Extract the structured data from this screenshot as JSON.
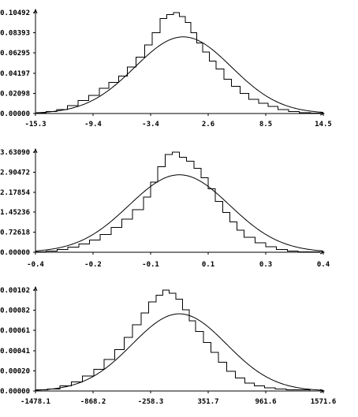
{
  "chart_data": [
    {
      "type": "line",
      "title": "",
      "xlabel": "",
      "ylabel": "",
      "xlim": [
        -15.3,
        14.5
      ],
      "ylim": [
        0,
        0.10492
      ],
      "x_ticks": [
        "-15.3",
        "-9.4",
        "-3.4",
        "2.6",
        "8.5",
        "14.5"
      ],
      "y_ticks": [
        "0.00000",
        "0.02098",
        "0.04197",
        "0.06295",
        "0.08393",
        "0.10492"
      ],
      "series": [
        {
          "kind": "step",
          "x": [
            -15.3,
            -14.2,
            -13.1,
            -12.0,
            -10.9,
            -9.8,
            -8.7,
            -7.7,
            -6.7,
            -5.8,
            -4.9,
            -4.0,
            -3.2,
            -2.4,
            -1.7,
            -1.0,
            -0.4,
            0.2,
            0.8,
            1.4,
            2.0,
            2.7,
            3.4,
            4.2,
            5.0,
            5.9,
            6.8,
            7.8,
            8.8,
            9.8,
            10.9,
            12.0,
            13.2,
            14.5
          ],
          "y": [
            0.001,
            0.0021,
            0.0042,
            0.0084,
            0.0136,
            0.0189,
            0.0262,
            0.0325,
            0.0388,
            0.0483,
            0.0587,
            0.0713,
            0.0839,
            0.0986,
            0.103,
            0.1049,
            0.101,
            0.0945,
            0.084,
            0.0735,
            0.064,
            0.0546,
            0.0462,
            0.0357,
            0.0283,
            0.021,
            0.0147,
            0.0105,
            0.0073,
            0.0042,
            0.0021,
            0.001,
            0.0005,
            0.0
          ]
        },
        {
          "kind": "curve",
          "mean": 0.0,
          "sd": 5.0,
          "peak": 0.0797,
          "x_range": [
            -15.3,
            14.5
          ]
        }
      ]
    },
    {
      "type": "line",
      "title": "",
      "xlabel": "",
      "ylabel": "",
      "xlim": [
        -0.4,
        0.4
      ],
      "ylim": [
        0,
        3.6309
      ],
      "x_ticks": [
        "-0.4",
        "-0.2",
        "-0.1",
        "0.1",
        "0.3",
        "0.4"
      ],
      "y_ticks": [
        "0.00000",
        "0.72618",
        "1.45236",
        "2.17854",
        "2.90472",
        "3.63090"
      ],
      "series": [
        {
          "kind": "step",
          "x": [
            -0.4,
            -0.37,
            -0.34,
            -0.31,
            -0.28,
            -0.25,
            -0.22,
            -0.19,
            -0.16,
            -0.13,
            -0.1,
            -0.08,
            -0.06,
            -0.04,
            -0.02,
            0.0,
            0.02,
            0.04,
            0.06,
            0.08,
            0.1,
            0.12,
            0.14,
            0.16,
            0.18,
            0.21,
            0.24,
            0.27,
            0.3,
            0.33,
            0.36,
            0.39,
            0.4
          ],
          "y": [
            0.02,
            0.05,
            0.1,
            0.18,
            0.3,
            0.45,
            0.65,
            0.9,
            1.2,
            1.55,
            2.0,
            2.55,
            3.1,
            3.55,
            3.63,
            3.45,
            3.3,
            3.05,
            2.7,
            2.3,
            1.85,
            1.45,
            1.1,
            0.8,
            0.55,
            0.35,
            0.2,
            0.1,
            0.05,
            0.02,
            0.01,
            0.0,
            0.0
          ]
        },
        {
          "kind": "curve",
          "mean": 0.0,
          "sd": 0.14,
          "peak": 2.81,
          "x_range": [
            -0.4,
            0.4
          ]
        }
      ]
    },
    {
      "type": "line",
      "title": "",
      "xlabel": "",
      "ylabel": "",
      "xlim": [
        -1478.1,
        1571.6
      ],
      "ylim": [
        0,
        0.00102
      ],
      "x_ticks": [
        "-1478.1",
        "-868.2",
        "-258.3",
        "351.7",
        "961.6",
        "1571.6"
      ],
      "y_ticks": [
        "0.00000",
        "0.00020",
        "0.00041",
        "0.00061",
        "0.00082",
        "0.00102"
      ],
      "series": [
        {
          "kind": "step",
          "x": [
            -1478.1,
            -1350,
            -1220,
            -1100,
            -980,
            -860,
            -750,
            -640,
            -540,
            -450,
            -360,
            -280,
            -200,
            -130,
            -60,
            10,
            80,
            150,
            220,
            300,
            380,
            460,
            550,
            640,
            740,
            840,
            950,
            1060,
            1180,
            1300,
            1430,
            1571.6
          ],
          "y": [
            1e-05,
            2e-05,
            5e-05,
            9e-05,
            0.00015,
            0.00022,
            0.00032,
            0.00042,
            0.00054,
            0.00067,
            0.00079,
            0.0009,
            0.00097,
            0.00102,
            0.00099,
            0.00093,
            0.00082,
            0.00071,
            0.0006,
            0.00049,
            0.00039,
            0.00029,
            0.0002,
            0.00013,
            8e-05,
            5e-05,
            3e-05,
            2e-05,
            1e-05,
            1e-05,
            0.0,
            0.0
          ]
        },
        {
          "kind": "curve",
          "mean": 46.7,
          "sd": 500,
          "peak": 0.00078,
          "x_range": [
            -1478.1,
            1571.6
          ]
        }
      ]
    }
  ]
}
